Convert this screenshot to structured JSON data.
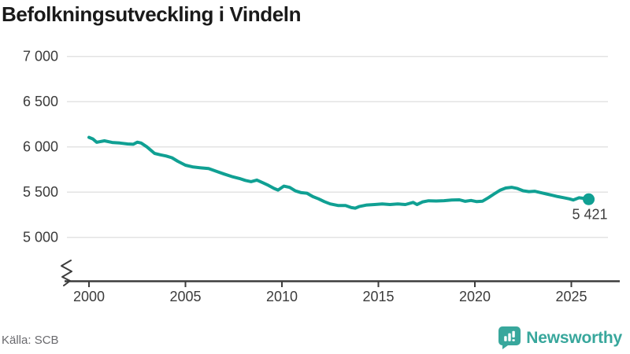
{
  "title": "Befolkningsutveckling i Vindeln",
  "source": "Källa: SCB",
  "logo": {
    "brand": "Newsworthy"
  },
  "colors": {
    "line": "#10a093",
    "logo_teal": "#38a79c",
    "grid": "#e3e3e3",
    "axis": "#3d3d3d",
    "tick_text": "#3b3b3b",
    "title_text": "#1a1a1a",
    "source_text": "#6a6a6e",
    "end_label_text": "#3d3d3d"
  },
  "chart_data": {
    "type": "line",
    "title": "Befolkningsutveckling i Vindeln",
    "xlabel": "",
    "ylabel": "",
    "grid": "horizontal",
    "axis_break": true,
    "legend": "none",
    "y_ticks": [
      7000,
      6500,
      6000,
      5500,
      5000
    ],
    "y_tick_labels": [
      "7 000",
      "6 500",
      "6 000",
      "5 500",
      "5 000"
    ],
    "x_ticks": [
      2000,
      2005,
      2010,
      2015,
      2020,
      2025
    ],
    "xlim": [
      1998.7,
      2027.5
    ],
    "ylim": [
      4850,
      7050
    ],
    "end_label": "5 421",
    "end_value": 5421,
    "series_name": "Befolkning",
    "points": [
      [
        2000.0,
        6105
      ],
      [
        2000.2,
        6088
      ],
      [
        2000.4,
        6050
      ],
      [
        2000.8,
        6067
      ],
      [
        2001.2,
        6049
      ],
      [
        2001.6,
        6043
      ],
      [
        2002.0,
        6032
      ],
      [
        2002.3,
        6029
      ],
      [
        2002.5,
        6052
      ],
      [
        2002.7,
        6043
      ],
      [
        2003.0,
        6000
      ],
      [
        2003.4,
        5928
      ],
      [
        2003.7,
        5912
      ],
      [
        2004.0,
        5899
      ],
      [
        2004.3,
        5880
      ],
      [
        2004.6,
        5841
      ],
      [
        2005.0,
        5797
      ],
      [
        2005.4,
        5777
      ],
      [
        2005.8,
        5768
      ],
      [
        2006.2,
        5760
      ],
      [
        2006.6,
        5730
      ],
      [
        2007.0,
        5700
      ],
      [
        2007.4,
        5672
      ],
      [
        2007.8,
        5650
      ],
      [
        2008.1,
        5630
      ],
      [
        2008.4,
        5616
      ],
      [
        2008.7,
        5633
      ],
      [
        2009.0,
        5604
      ],
      [
        2009.3,
        5575
      ],
      [
        2009.6,
        5540
      ],
      [
        2009.8,
        5523
      ],
      [
        2010.1,
        5566
      ],
      [
        2010.4,
        5552
      ],
      [
        2010.7,
        5513
      ],
      [
        2011.0,
        5494
      ],
      [
        2011.3,
        5488
      ],
      [
        2011.6,
        5450
      ],
      [
        2011.9,
        5425
      ],
      [
        2012.2,
        5395
      ],
      [
        2012.5,
        5370
      ],
      [
        2012.9,
        5352
      ],
      [
        2013.3,
        5352
      ],
      [
        2013.6,
        5329
      ],
      [
        2013.8,
        5323
      ],
      [
        2014.0,
        5340
      ],
      [
        2014.4,
        5357
      ],
      [
        2014.8,
        5363
      ],
      [
        2015.2,
        5370
      ],
      [
        2015.6,
        5363
      ],
      [
        2016.0,
        5370
      ],
      [
        2016.4,
        5363
      ],
      [
        2016.8,
        5386
      ],
      [
        2017.0,
        5363
      ],
      [
        2017.3,
        5392
      ],
      [
        2017.6,
        5404
      ],
      [
        2018.0,
        5402
      ],
      [
        2018.4,
        5405
      ],
      [
        2018.8,
        5412
      ],
      [
        2019.2,
        5415
      ],
      [
        2019.5,
        5398
      ],
      [
        2019.8,
        5408
      ],
      [
        2020.1,
        5395
      ],
      [
        2020.4,
        5400
      ],
      [
        2020.7,
        5438
      ],
      [
        2021.0,
        5480
      ],
      [
        2021.3,
        5520
      ],
      [
        2021.6,
        5545
      ],
      [
        2021.9,
        5553
      ],
      [
        2022.2,
        5540
      ],
      [
        2022.5,
        5515
      ],
      [
        2022.8,
        5505
      ],
      [
        2023.1,
        5510
      ],
      [
        2023.4,
        5495
      ],
      [
        2023.7,
        5480
      ],
      [
        2024.0,
        5465
      ],
      [
        2024.3,
        5450
      ],
      [
        2024.6,
        5438
      ],
      [
        2024.9,
        5425
      ],
      [
        2025.1,
        5413
      ],
      [
        2025.4,
        5437
      ],
      [
        2025.6,
        5432
      ],
      [
        2025.9,
        5421
      ]
    ]
  }
}
